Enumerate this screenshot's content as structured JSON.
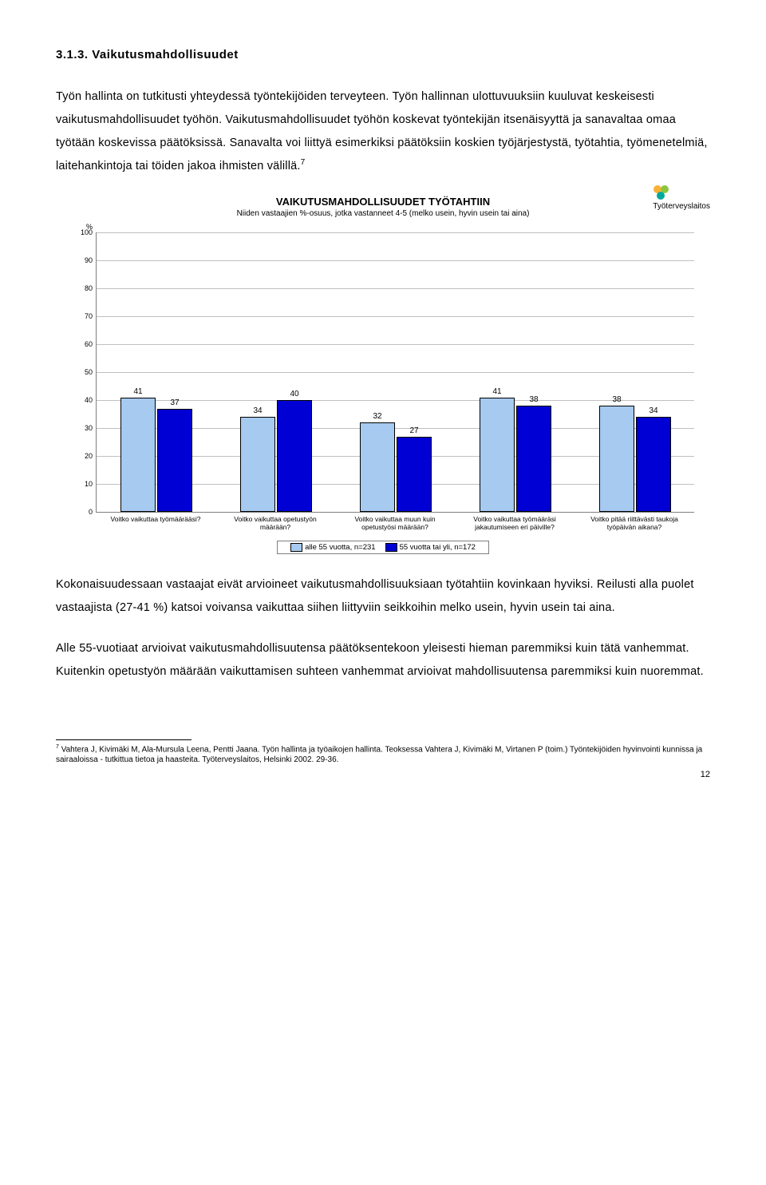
{
  "heading": "3.1.3. Vaikutusmahdollisuudet",
  "para1": "Työn hallinta on tutkitusti yhteydessä työntekijöiden terveyteen. Työn hallinnan ulottuvuuksiin kuuluvat keskeisesti vaikutusmahdollisuudet työhön. Vaikutusmahdollisuudet työhön koskevat työntekijän itsenäisyyttä ja sanavaltaa omaa työtään koskevissa päätöksissä. Sanavalta voi liittyä esimerkiksi päätöksiin koskien työjärjestystä, työtahtia, työmenetelmiä, laitehankintoja tai töiden jakoa ihmisten välillä.",
  "para1_sup": "7",
  "chart": {
    "title": "VAIKUTUSMAHDOLLISUUDET TYÖTAHTIIN",
    "subtitle": "Niiden vastaajien %-osuus, jotka vastanneet 4-5 (melko usein, hyvin usein tai aina)",
    "logo_text": "Työterveyslaitos",
    "y_unit": "%",
    "ylim": [
      0,
      100
    ],
    "ytick_step": 10,
    "grid_color": "#c0c0c0",
    "axis_color": "#7f7f7f",
    "bar_colors": [
      "#a6caf0",
      "#0000d4"
    ],
    "categories": [
      "Voitko vaikuttaa työmäärääsi?",
      "Voitko vaikuttaa opetustyön määrään?",
      "Voitko vaikuttaa muun kuin opetustyösi määrään?",
      "Voitko vaikuttaa työmääräsi jakautumiseen eri päiville?",
      "Voitko pitää riittävästi taukoja työpäivän aikana?"
    ],
    "series": [
      {
        "label": "alle 55 vuotta, n=231",
        "values": [
          41,
          34,
          32,
          41,
          38
        ]
      },
      {
        "label": "55 vuotta tai yli, n=172",
        "values": [
          37,
          40,
          27,
          38,
          34
        ]
      }
    ]
  },
  "para2": "Kokonaisuudessaan vastaajat eivät arvioineet vaikutusmahdollisuuksiaan työtahtiin kovinkaan hyviksi. Reilusti alla puolet vastaajista (27-41 %) katsoi voivansa vaikuttaa siihen liittyviin seikkoihin melko usein, hyvin usein tai aina.",
  "para3": "Alle 55-vuotiaat arvioivat vaikutusmahdollisuutensa päätöksentekoon yleisesti hieman paremmiksi kuin tätä vanhemmat. Kuitenkin opetustyön määrään vaikuttamisen suhteen vanhemmat arvioivat mahdollisuutensa paremmiksi kuin nuoremmat.",
  "footnote": {
    "num": "7",
    "text": "Vahtera J, Kivimäki M, Ala-Mursula Leena, Pentti Jaana. Työn hallinta ja työaikojen hallinta. Teoksessa Vahtera J, Kivimäki M, Virtanen P (toim.) Työntekijöiden hyvinvointi kunnissa ja sairaaloissa - tutkittua tietoa ja haasteita. Työterveyslaitos, Helsinki 2002. 29-36."
  },
  "page_number": "12"
}
